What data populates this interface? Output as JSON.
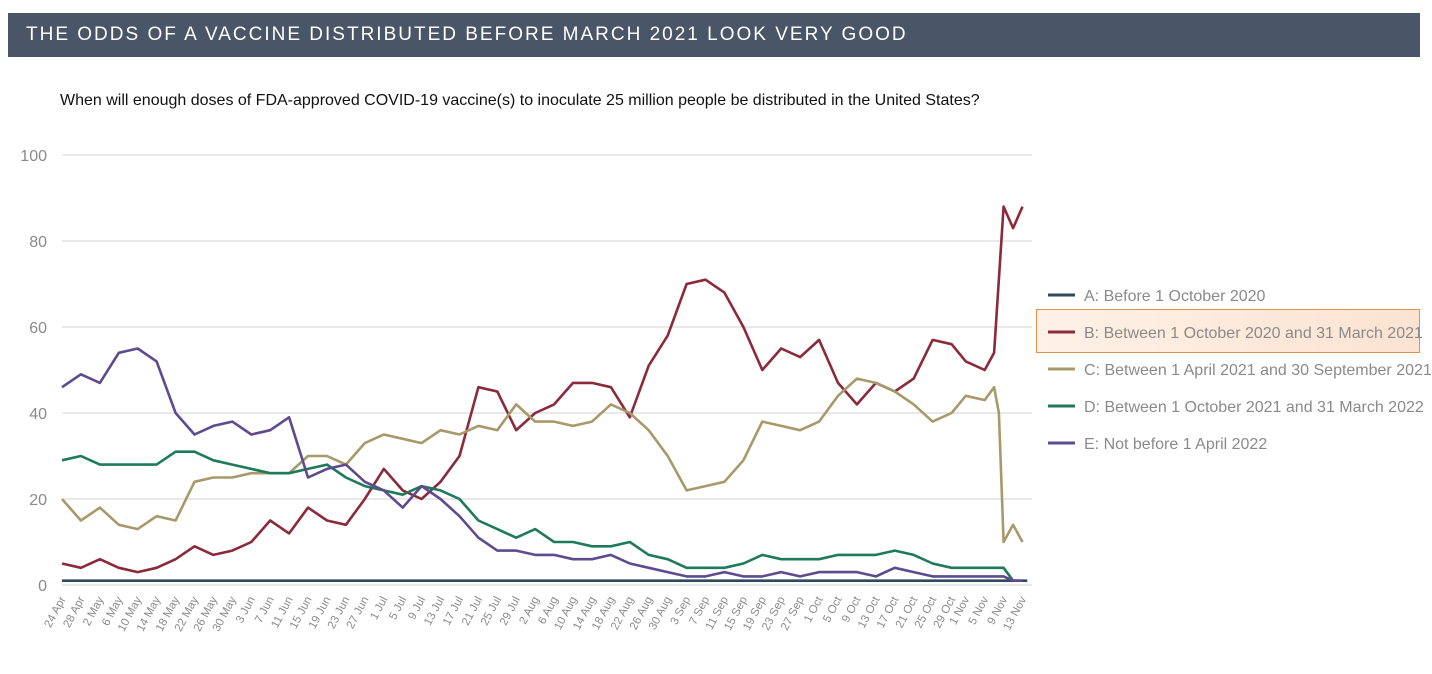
{
  "banner": {
    "title": "THE ODDS OF A VACCINE DISTRIBUTED BEFORE MARCH 2021 LOOK VERY GOOD"
  },
  "chart_data": {
    "type": "line",
    "title": "When will enough doses of FDA-approved COVID-19 vaccine(s) to inoculate 25 million people be distributed in the United States?",
    "xlabel": "",
    "ylabel": "",
    "ylim": [
      0,
      100
    ],
    "yticks": [
      0,
      20,
      40,
      60,
      80,
      100
    ],
    "xlim": [
      "24 Apr",
      "15 Nov"
    ],
    "grid": true,
    "legend_position": "right",
    "highlighted_series": "B: Between 1 October 2020 and 31 March 2021",
    "x_tick_labels": [
      "24 Apr",
      "28 Apr",
      "2 May",
      "6 May",
      "10 May",
      "14 May",
      "18 May",
      "22 May",
      "26 May",
      "30 May",
      "3 Jun",
      "7 Jun",
      "11 Jun",
      "15 Jun",
      "19 Jun",
      "23 Jun",
      "27 Jun",
      "1 Jul",
      "5 Jul",
      "9 Jul",
      "13 Jul",
      "17 Jul",
      "21 Jul",
      "25 Jul",
      "29 Jul",
      "2 Aug",
      "6 Aug",
      "10 Aug",
      "14 Aug",
      "18 Aug",
      "22 Aug",
      "26 Aug",
      "30 Aug",
      "3 Sep",
      "7 Sep",
      "11 Sep",
      "15 Sep",
      "19 Sep",
      "23 Sep",
      "27 Sep",
      "1 Oct",
      "5 Oct",
      "9 Oct",
      "13 Oct",
      "17 Oct",
      "21 Oct",
      "25 Oct",
      "29 Oct",
      "1 Nov",
      "5 Nov",
      "9 Nov",
      "13 Nov"
    ],
    "series": [
      {
        "name": "A: Before 1 October 2020",
        "color": "#2f4a5c",
        "points": [
          [
            "24 Apr",
            1
          ],
          [
            "14 Nov",
            1
          ]
        ]
      },
      {
        "name": "B: Between 1 October 2020 and 31 March 2021",
        "color": "#8b2a3a",
        "points": [
          [
            "24 Apr",
            5
          ],
          [
            "28 Apr",
            4
          ],
          [
            "2 May",
            6
          ],
          [
            "6 May",
            4
          ],
          [
            "10 May",
            3
          ],
          [
            "14 May",
            4
          ],
          [
            "18 May",
            6
          ],
          [
            "22 May",
            9
          ],
          [
            "26 May",
            7
          ],
          [
            "30 May",
            8
          ],
          [
            "3 Jun",
            10
          ],
          [
            "7 Jun",
            15
          ],
          [
            "11 Jun",
            12
          ],
          [
            "15 Jun",
            18
          ],
          [
            "19 Jun",
            15
          ],
          [
            "23 Jun",
            14
          ],
          [
            "27 Jun",
            20
          ],
          [
            "1 Jul",
            27
          ],
          [
            "5 Jul",
            22
          ],
          [
            "9 Jul",
            20
          ],
          [
            "13 Jul",
            24
          ],
          [
            "17 Jul",
            30
          ],
          [
            "21 Jul",
            46
          ],
          [
            "25 Jul",
            45
          ],
          [
            "29 Jul",
            36
          ],
          [
            "2 Aug",
            40
          ],
          [
            "6 Aug",
            42
          ],
          [
            "10 Aug",
            47
          ],
          [
            "14 Aug",
            47
          ],
          [
            "18 Aug",
            46
          ],
          [
            "22 Aug",
            39
          ],
          [
            "26 Aug",
            51
          ],
          [
            "30 Aug",
            58
          ],
          [
            "3 Sep",
            70
          ],
          [
            "7 Sep",
            71
          ],
          [
            "11 Sep",
            68
          ],
          [
            "15 Sep",
            60
          ],
          [
            "19 Sep",
            50
          ],
          [
            "23 Sep",
            55
          ],
          [
            "27 Sep",
            53
          ],
          [
            "1 Oct",
            57
          ],
          [
            "5 Oct",
            47
          ],
          [
            "9 Oct",
            42
          ],
          [
            "13 Oct",
            47
          ],
          [
            "17 Oct",
            45
          ],
          [
            "21 Oct",
            48
          ],
          [
            "25 Oct",
            57
          ],
          [
            "29 Oct",
            56
          ],
          [
            "1 Nov",
            52
          ],
          [
            "5 Nov",
            50
          ],
          [
            "7 Nov",
            54
          ],
          [
            "9 Nov",
            88
          ],
          [
            "11 Nov",
            83
          ],
          [
            "13 Nov",
            88
          ]
        ]
      },
      {
        "name": "C: Between 1 April 2021 and 30 September 2021",
        "color": "#a8996a",
        "points": [
          [
            "24 Apr",
            20
          ],
          [
            "28 Apr",
            15
          ],
          [
            "2 May",
            18
          ],
          [
            "6 May",
            14
          ],
          [
            "10 May",
            13
          ],
          [
            "14 May",
            16
          ],
          [
            "18 May",
            15
          ],
          [
            "22 May",
            24
          ],
          [
            "26 May",
            25
          ],
          [
            "30 May",
            25
          ],
          [
            "3 Jun",
            26
          ],
          [
            "7 Jun",
            26
          ],
          [
            "11 Jun",
            26
          ],
          [
            "15 Jun",
            30
          ],
          [
            "19 Jun",
            30
          ],
          [
            "23 Jun",
            28
          ],
          [
            "27 Jun",
            33
          ],
          [
            "1 Jul",
            35
          ],
          [
            "5 Jul",
            34
          ],
          [
            "9 Jul",
            33
          ],
          [
            "13 Jul",
            36
          ],
          [
            "17 Jul",
            35
          ],
          [
            "21 Jul",
            37
          ],
          [
            "25 Jul",
            36
          ],
          [
            "29 Jul",
            42
          ],
          [
            "2 Aug",
            38
          ],
          [
            "6 Aug",
            38
          ],
          [
            "10 Aug",
            37
          ],
          [
            "14 Aug",
            38
          ],
          [
            "18 Aug",
            42
          ],
          [
            "22 Aug",
            40
          ],
          [
            "26 Aug",
            36
          ],
          [
            "30 Aug",
            30
          ],
          [
            "3 Sep",
            22
          ],
          [
            "7 Sep",
            23
          ],
          [
            "11 Sep",
            24
          ],
          [
            "15 Sep",
            29
          ],
          [
            "19 Sep",
            38
          ],
          [
            "23 Sep",
            37
          ],
          [
            "27 Sep",
            36
          ],
          [
            "1 Oct",
            38
          ],
          [
            "5 Oct",
            44
          ],
          [
            "9 Oct",
            48
          ],
          [
            "13 Oct",
            47
          ],
          [
            "17 Oct",
            45
          ],
          [
            "21 Oct",
            42
          ],
          [
            "25 Oct",
            38
          ],
          [
            "29 Oct",
            40
          ],
          [
            "1 Nov",
            44
          ],
          [
            "5 Nov",
            43
          ],
          [
            "7 Nov",
            46
          ],
          [
            "8 Nov",
            40
          ],
          [
            "9 Nov",
            10
          ],
          [
            "11 Nov",
            14
          ],
          [
            "13 Nov",
            10
          ]
        ]
      },
      {
        "name": "D: Between 1 October 2021 and 31 March 2022",
        "color": "#1f7a5c",
        "points": [
          [
            "24 Apr",
            29
          ],
          [
            "28 Apr",
            30
          ],
          [
            "2 May",
            28
          ],
          [
            "6 May",
            28
          ],
          [
            "10 May",
            28
          ],
          [
            "14 May",
            28
          ],
          [
            "18 May",
            31
          ],
          [
            "22 May",
            31
          ],
          [
            "26 May",
            29
          ],
          [
            "30 May",
            28
          ],
          [
            "3 Jun",
            27
          ],
          [
            "7 Jun",
            26
          ],
          [
            "11 Jun",
            26
          ],
          [
            "15 Jun",
            27
          ],
          [
            "19 Jun",
            28
          ],
          [
            "23 Jun",
            25
          ],
          [
            "27 Jun",
            23
          ],
          [
            "1 Jul",
            22
          ],
          [
            "5 Jul",
            21
          ],
          [
            "9 Jul",
            23
          ],
          [
            "13 Jul",
            22
          ],
          [
            "17 Jul",
            20
          ],
          [
            "21 Jul",
            15
          ],
          [
            "25 Jul",
            13
          ],
          [
            "29 Jul",
            11
          ],
          [
            "2 Aug",
            13
          ],
          [
            "6 Aug",
            10
          ],
          [
            "10 Aug",
            10
          ],
          [
            "14 Aug",
            9
          ],
          [
            "18 Aug",
            9
          ],
          [
            "22 Aug",
            10
          ],
          [
            "26 Aug",
            7
          ],
          [
            "30 Aug",
            6
          ],
          [
            "3 Sep",
            4
          ],
          [
            "7 Sep",
            4
          ],
          [
            "11 Sep",
            4
          ],
          [
            "15 Sep",
            5
          ],
          [
            "19 Sep",
            7
          ],
          [
            "23 Sep",
            6
          ],
          [
            "27 Sep",
            6
          ],
          [
            "1 Oct",
            6
          ],
          [
            "5 Oct",
            7
          ],
          [
            "9 Oct",
            7
          ],
          [
            "13 Oct",
            7
          ],
          [
            "17 Oct",
            8
          ],
          [
            "21 Oct",
            7
          ],
          [
            "25 Oct",
            5
          ],
          [
            "29 Oct",
            4
          ],
          [
            "1 Nov",
            4
          ],
          [
            "5 Nov",
            4
          ],
          [
            "9 Nov",
            4
          ],
          [
            "11 Nov",
            1
          ],
          [
            "13 Nov",
            1
          ]
        ]
      },
      {
        "name": "E: Not before 1 April 2022",
        "color": "#5e4a8e",
        "points": [
          [
            "24 Apr",
            46
          ],
          [
            "28 Apr",
            49
          ],
          [
            "2 May",
            47
          ],
          [
            "6 May",
            54
          ],
          [
            "10 May",
            55
          ],
          [
            "14 May",
            52
          ],
          [
            "18 May",
            40
          ],
          [
            "22 May",
            35
          ],
          [
            "26 May",
            37
          ],
          [
            "30 May",
            38
          ],
          [
            "3 Jun",
            35
          ],
          [
            "7 Jun",
            36
          ],
          [
            "11 Jun",
            39
          ],
          [
            "15 Jun",
            25
          ],
          [
            "19 Jun",
            27
          ],
          [
            "23 Jun",
            28
          ],
          [
            "27 Jun",
            24
          ],
          [
            "1 Jul",
            22
          ],
          [
            "5 Jul",
            18
          ],
          [
            "9 Jul",
            23
          ],
          [
            "13 Jul",
            20
          ],
          [
            "17 Jul",
            16
          ],
          [
            "21 Jul",
            11
          ],
          [
            "25 Jul",
            8
          ],
          [
            "29 Jul",
            8
          ],
          [
            "2 Aug",
            7
          ],
          [
            "6 Aug",
            7
          ],
          [
            "10 Aug",
            6
          ],
          [
            "14 Aug",
            6
          ],
          [
            "18 Aug",
            7
          ],
          [
            "22 Aug",
            5
          ],
          [
            "26 Aug",
            4
          ],
          [
            "30 Aug",
            3
          ],
          [
            "3 Sep",
            2
          ],
          [
            "7 Sep",
            2
          ],
          [
            "11 Sep",
            3
          ],
          [
            "15 Sep",
            2
          ],
          [
            "19 Sep",
            2
          ],
          [
            "23 Sep",
            3
          ],
          [
            "27 Sep",
            2
          ],
          [
            "1 Oct",
            3
          ],
          [
            "5 Oct",
            3
          ],
          [
            "9 Oct",
            3
          ],
          [
            "13 Oct",
            2
          ],
          [
            "17 Oct",
            4
          ],
          [
            "21 Oct",
            3
          ],
          [
            "25 Oct",
            2
          ],
          [
            "29 Oct",
            2
          ],
          [
            "1 Nov",
            2
          ],
          [
            "5 Nov",
            2
          ],
          [
            "9 Nov",
            2
          ],
          [
            "11 Nov",
            1
          ],
          [
            "13 Nov",
            1
          ]
        ]
      }
    ]
  }
}
